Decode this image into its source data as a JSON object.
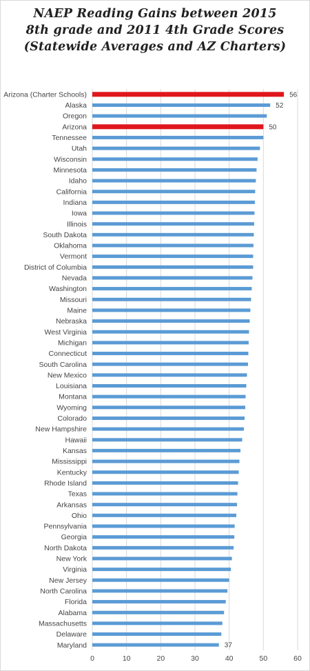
{
  "colors": {
    "bar": "#5b9bd5",
    "highlight": "#e0161d",
    "gridline": "#d9d9d9"
  },
  "chart_data": {
    "type": "bar",
    "orientation": "horizontal",
    "title_lines": [
      "NAEP Reading Gains between 2015",
      "8th grade and 2011 4th Grade Scores",
      "(Statewide Averages and AZ Charters)"
    ],
    "xlim": [
      0,
      60
    ],
    "xticks": [
      "0",
      "10",
      "20",
      "30",
      "40",
      "50",
      "60"
    ],
    "grid": true,
    "categories": [
      "Arizona (Charter Schools)",
      "Alaska",
      "Oregon",
      "Arizona",
      "Tennessee",
      "Utah",
      "Wisconsin",
      "Minnesota",
      "Idaho",
      "California",
      "Indiana",
      "Iowa",
      "Illinois",
      "South Dakota",
      "Oklahoma",
      "Vermont",
      "District of Columbia",
      "Nevada",
      "Washington",
      "Missouri",
      "Maine",
      "Nebraska",
      "West Virginia",
      "Michigan",
      "Connecticut",
      "South Carolina",
      "New Mexico",
      "Louisiana",
      "Montana",
      "Wyoming",
      "Colorado",
      "New Hampshire",
      "Hawaii",
      "Kansas",
      "Mississippi",
      "Kentucky",
      "Rhode Island",
      "Texas",
      "Arkansas",
      "Ohio",
      "Pennsylvania",
      "Georgia",
      "North Dakota",
      "New York",
      "Virginia",
      "New Jersey",
      "North Carolina",
      "Florida",
      "Alabama",
      "Massachusetts",
      "Delaware",
      "Maryland"
    ],
    "values": [
      56,
      52,
      51,
      50,
      50,
      49,
      48.3,
      48,
      47.8,
      47.6,
      47.5,
      47.4,
      47.3,
      47.2,
      47.1,
      47,
      47,
      46.8,
      46.6,
      46.4,
      46.2,
      46,
      45.8,
      45.7,
      45.6,
      45.5,
      45.2,
      45,
      44.8,
      44.7,
      44.5,
      44.3,
      43.8,
      43.3,
      43,
      42.8,
      42.6,
      42.4,
      42.3,
      42.1,
      41.6,
      41.5,
      41.3,
      40.8,
      40.5,
      40,
      39.5,
      39,
      38.5,
      38,
      37.7,
      37
    ],
    "highlighted": [
      "Arizona (Charter Schools)",
      "Arizona"
    ],
    "data_labels": [
      {
        "category": "Arizona (Charter Schools)",
        "text": "56"
      },
      {
        "category": "Alaska",
        "text": "52"
      },
      {
        "category": "Arizona",
        "text": "50"
      },
      {
        "category": "Maryland",
        "text": "37"
      }
    ]
  }
}
